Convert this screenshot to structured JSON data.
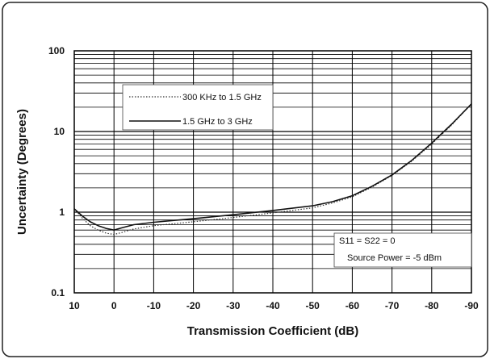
{
  "chart_data": {
    "type": "line",
    "xlabel": "Transmission Coefficient (dB)",
    "ylabel": "Uncertainty (Degrees)",
    "x_ticks": [
      10,
      0,
      -10,
      -20,
      -30,
      -40,
      -50,
      -60,
      -70,
      -80,
      -90
    ],
    "x_tick_labels": [
      "10",
      "0",
      "-10",
      "-20",
      "-30",
      "-40",
      "-50",
      "-60",
      "-70",
      "-80",
      "-90"
    ],
    "xlim": [
      10,
      -90
    ],
    "y_scale": "log",
    "ylim": [
      0.1,
      100
    ],
    "y_ticks": [
      0.1,
      1,
      10,
      100
    ],
    "y_tick_labels": [
      "0.1",
      "1",
      "10",
      "100"
    ],
    "grid": true,
    "legend": "upper-left",
    "series": [
      {
        "name": "300 KHz to 1.5 GHz",
        "style": "dotted",
        "color": "#333333",
        "x": [
          10,
          8,
          6,
          4,
          2,
          0,
          -2,
          -5,
          -10,
          -20,
          -30,
          -40,
          -50,
          -55,
          -60,
          -65,
          -70,
          -75,
          -80,
          -85,
          -90
        ],
        "y": [
          1.1,
          0.85,
          0.68,
          0.6,
          0.55,
          0.53,
          0.56,
          0.62,
          0.68,
          0.76,
          0.86,
          0.98,
          1.13,
          1.3,
          1.55,
          2.05,
          2.85,
          4.3,
          7.0,
          12.0,
          22.0
        ]
      },
      {
        "name": "1.5 GHz to 3 GHz",
        "style": "solid",
        "color": "#111111",
        "x": [
          10,
          8,
          6,
          4,
          2,
          0,
          -2,
          -5,
          -10,
          -20,
          -30,
          -40,
          -50,
          -55,
          -60,
          -65,
          -70,
          -75,
          -80,
          -85,
          -90
        ],
        "y": [
          1.1,
          0.9,
          0.76,
          0.68,
          0.63,
          0.6,
          0.64,
          0.7,
          0.75,
          0.83,
          0.93,
          1.05,
          1.2,
          1.35,
          1.6,
          2.1,
          2.9,
          4.4,
          7.2,
          12.3,
          22.0
        ]
      }
    ],
    "annotations": [
      "S11 = S22 = 0",
      "Source Power = -5 dBm"
    ]
  }
}
